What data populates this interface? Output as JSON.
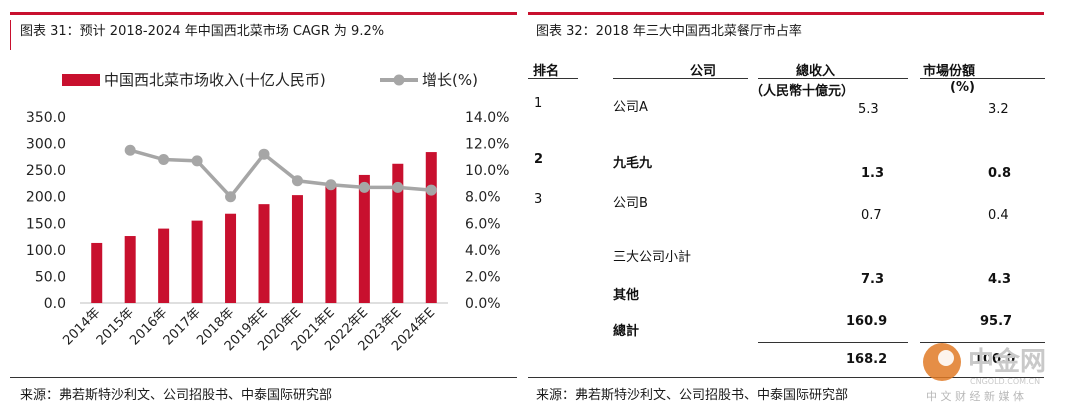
{
  "left": {
    "title": "图表 31：预计 2018-2024 年中国西北菜市场 CAGR 为 9.2%",
    "source": "来源：弗若斯特沙利文、公司招股书、中泰国际研究部"
  },
  "right": {
    "title": "图表 32：2018 年三大中国西北菜餐厅市占率",
    "source": "来源：弗若斯特沙利文、公司招股书、中泰国际研究部",
    "headers": {
      "rank": "排名",
      "company": "公司",
      "revenue": "總收入",
      "revenue_unit": "（人民幣十億元）",
      "share": "市場份額",
      "share_unit": "(%)"
    },
    "rows": [
      {
        "rank": "1",
        "company": "公司A",
        "revenue": "5.3",
        "share": "3.2"
      },
      {
        "rank": "2",
        "company": "九毛九",
        "revenue": "1.3",
        "share": "0.8"
      },
      {
        "rank": "3",
        "company": "公司B",
        "revenue": "0.7",
        "share": "0.4"
      },
      {
        "rank": "",
        "company": "三大公司小計",
        "revenue": "7.3",
        "share": "4.3"
      },
      {
        "rank": "",
        "company": "其他",
        "revenue": "160.9",
        "share": "95.7"
      },
      {
        "rank": "",
        "company": "總計",
        "revenue": "168.2",
        "share": "100.0"
      }
    ]
  },
  "watermark": {
    "text": "中金网",
    "url": "CNGOLD.COM.CN",
    "sub": "中 文 财 经 新 媒 体"
  },
  "chart_data": {
    "type": "bar",
    "categories": [
      "2014年",
      "2015年",
      "2016年",
      "2017年",
      "2018年",
      "2019年E",
      "2020年E",
      "2021年E",
      "2022年E",
      "2023年E",
      "2024年E"
    ],
    "series": [
      {
        "name": "中国西北菜市场收入(十亿人民币)",
        "type": "bar",
        "axis": "left",
        "color": "#c8102e",
        "values": [
          113,
          126,
          140,
          155,
          168,
          186,
          203,
          222,
          241,
          262,
          284
        ]
      },
      {
        "name": "增长(%)",
        "type": "line",
        "axis": "right",
        "color": "#a6a6a6",
        "values": [
          null,
          11.5,
          10.8,
          10.7,
          8.0,
          11.2,
          9.2,
          8.9,
          8.7,
          8.7,
          8.5
        ]
      }
    ],
    "ylim_left": [
      0,
      350
    ],
    "yticks_left": [
      "0.0",
      "50.0",
      "100.0",
      "150.0",
      "200.0",
      "250.0",
      "300.0",
      "350.0"
    ],
    "ylim_right": [
      0,
      14
    ],
    "yticks_right": [
      "0.0%",
      "2.0%",
      "4.0%",
      "6.0%",
      "8.0%",
      "10.0%",
      "12.0%",
      "14.0%"
    ],
    "legend_position": "top"
  }
}
